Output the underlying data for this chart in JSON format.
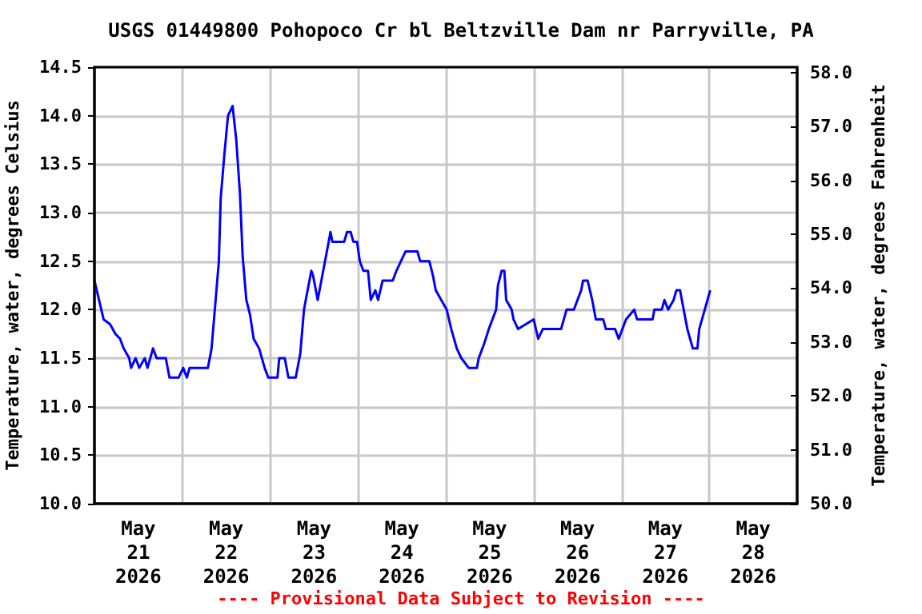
{
  "chart_data": {
    "type": "line",
    "title": "USGS 01449800 Pohopoco Cr bl Beltzville Dam nr Parryville, PA",
    "ylabel": "Temperature, water, degrees Celsius",
    "y2label": "Temperature, water, degrees Fahrenheit",
    "annotations": [
      "---- Provisional Data Subject to Revision ----"
    ],
    "x": [
      "2026-05-21T00:00",
      "2026-05-21T01:15",
      "2026-05-21T02:30",
      "2026-05-21T04:15",
      "2026-05-21T05:45",
      "2026-05-21T07:00",
      "2026-05-21T08:00",
      "2026-05-21T09:30",
      "2026-05-21T10:00",
      "2026-05-21T11:15",
      "2026-05-21T12:15",
      "2026-05-21T13:45",
      "2026-05-21T14:30",
      "2026-05-21T16:00",
      "2026-05-21T17:00",
      "2026-05-21T19:30",
      "2026-05-21T20:30",
      "2026-05-21T23:00",
      "2026-05-22T00:15",
      "2026-05-22T01:15",
      "2026-05-22T02:00",
      "2026-05-22T07:00",
      "2026-05-22T08:00",
      "2026-05-22T09:00",
      "2026-05-22T10:00",
      "2026-05-22T10:30",
      "2026-05-22T11:30",
      "2026-05-22T12:30",
      "2026-05-22T13:45",
      "2026-05-22T14:45",
      "2026-05-22T15:45",
      "2026-05-22T16:30",
      "2026-05-22T17:30",
      "2026-05-22T18:30",
      "2026-05-22T19:30",
      "2026-05-22T21:00",
      "2026-05-22T22:30",
      "2026-05-22T23:30",
      "2026-05-23T02:00",
      "2026-05-23T02:30",
      "2026-05-23T04:00",
      "2026-05-23T05:00",
      "2026-05-23T07:00",
      "2026-05-23T08:15",
      "2026-05-23T09:15",
      "2026-05-23T10:15",
      "2026-05-23T11:15",
      "2026-05-23T11:45",
      "2026-05-23T13:00",
      "2026-05-23T14:00",
      "2026-05-23T15:00",
      "2026-05-23T16:30",
      "2026-05-23T17:00",
      "2026-05-23T20:15",
      "2026-05-23T21:00",
      "2026-05-23T22:00",
      "2026-05-23T22:45",
      "2026-05-23T23:45",
      "2026-05-24T00:30",
      "2026-05-24T01:30",
      "2026-05-24T02:45",
      "2026-05-24T03:30",
      "2026-05-24T04:45",
      "2026-05-24T05:30",
      "2026-05-24T06:45",
      "2026-05-24T09:30",
      "2026-05-24T10:30",
      "2026-05-24T11:45",
      "2026-05-24T13:00",
      "2026-05-24T16:15",
      "2026-05-24T17:00",
      "2026-05-24T19:30",
      "2026-05-24T20:30",
      "2026-05-24T21:15",
      "2026-05-24T22:45",
      "2026-05-25T00:15",
      "2026-05-25T01:30",
      "2026-05-25T03:00",
      "2026-05-25T04:15",
      "2026-05-25T06:15",
      "2026-05-25T08:30",
      "2026-05-25T09:00",
      "2026-05-25T10:30",
      "2026-05-25T11:45",
      "2026-05-25T13:45",
      "2026-05-25T14:15",
      "2026-05-25T15:15",
      "2026-05-25T16:00",
      "2026-05-25T16:30",
      "2026-05-25T18:00",
      "2026-05-25T18:30",
      "2026-05-25T19:45",
      "2026-05-26T00:00",
      "2026-05-26T01:15",
      "2026-05-26T02:30",
      "2026-05-26T07:30",
      "2026-05-26T09:00",
      "2026-05-26T11:00",
      "2026-05-26T13:00",
      "2026-05-26T13:30",
      "2026-05-26T14:45",
      "2026-05-26T16:00",
      "2026-05-26T16:30",
      "2026-05-26T17:00",
      "2026-05-26T19:00",
      "2026-05-26T19:45",
      "2026-05-26T22:15",
      "2026-05-26T23:15",
      "2026-05-27T00:15",
      "2026-05-27T01:15",
      "2026-05-27T03:30",
      "2026-05-27T04:15",
      "2026-05-27T08:30",
      "2026-05-27T09:00",
      "2026-05-27T11:00",
      "2026-05-27T11:45",
      "2026-05-27T12:45",
      "2026-05-27T14:15",
      "2026-05-27T15:00",
      "2026-05-27T16:00",
      "2026-05-27T17:00",
      "2026-05-27T18:00",
      "2026-05-27T18:45",
      "2026-05-27T19:30",
      "2026-05-27T20:45",
      "2026-05-27T21:15",
      "2026-05-27T22:45",
      "2026-05-28T00:15"
    ],
    "series": [
      {
        "color": "#0000ff",
        "values": [
          12.3,
          12.1,
          11.9,
          11.85,
          11.75,
          11.7,
          11.6,
          11.5,
          11.4,
          11.5,
          11.4,
          11.5,
          11.4,
          11.6,
          11.5,
          11.5,
          11.3,
          11.3,
          11.4,
          11.3,
          11.4,
          11.4,
          11.6,
          12.05,
          12.5,
          13.15,
          13.6,
          14.0,
          14.1,
          13.75,
          13.2,
          12.55,
          12.1,
          11.95,
          11.7,
          11.6,
          11.4,
          11.3,
          11.3,
          11.5,
          11.5,
          11.3,
          11.3,
          11.55,
          12.0,
          12.2,
          12.4,
          12.35,
          12.1,
          12.3,
          12.5,
          12.8,
          12.7,
          12.7,
          12.8,
          12.8,
          12.7,
          12.7,
          12.5,
          12.4,
          12.4,
          12.1,
          12.2,
          12.1,
          12.3,
          12.3,
          12.4,
          12.5,
          12.6,
          12.6,
          12.5,
          12.5,
          12.35,
          12.2,
          12.1,
          12.0,
          11.8,
          11.6,
          11.5,
          11.4,
          11.4,
          11.5,
          11.65,
          11.8,
          12.0,
          12.25,
          12.4,
          12.4,
          12.1,
          12.0,
          11.9,
          11.8,
          11.9,
          11.7,
          11.8,
          11.8,
          12.0,
          12.0,
          12.2,
          12.3,
          12.3,
          12.1,
          12.0,
          11.9,
          11.9,
          11.8,
          11.8,
          11.7,
          11.8,
          11.9,
          12.0,
          11.9,
          11.9,
          12.0,
          12.0,
          12.1,
          12.0,
          12.1,
          12.2,
          12.2,
          12.0,
          11.8,
          11.7,
          11.6,
          11.6,
          11.8,
          12.0,
          12.2
        ]
      }
    ],
    "xlim": [
      "2026-05-21",
      "2026-05-29"
    ],
    "xticks": [
      {
        "value": "2026-05-21T00:00",
        "label": null
      },
      {
        "value": "2026-05-21T12:00",
        "label": "May\n21\n2026"
      },
      {
        "value": "2026-05-22T00:00",
        "label": null
      },
      {
        "value": "2026-05-22T12:00",
        "label": "May\n22\n2026"
      },
      {
        "value": "2026-05-23T00:00",
        "label": null
      },
      {
        "value": "2026-05-23T12:00",
        "label": "May\n23\n2026"
      },
      {
        "value": "2026-05-24T00:00",
        "label": null
      },
      {
        "value": "2026-05-24T12:00",
        "label": "May\n24\n2026"
      },
      {
        "value": "2026-05-25T00:00",
        "label": null
      },
      {
        "value": "2026-05-25T12:00",
        "label": "May\n25\n2026"
      },
      {
        "value": "2026-05-26T00:00",
        "label": null
      },
      {
        "value": "2026-05-26T12:00",
        "label": "May\n26\n2026"
      },
      {
        "value": "2026-05-27T00:00",
        "label": null
      },
      {
        "value": "2026-05-27T12:00",
        "label": "May\n27\n2026"
      },
      {
        "value": "2026-05-28T00:00",
        "label": null
      },
      {
        "value": "2026-05-28T12:00",
        "label": "May\n28\n2026"
      },
      {
        "value": "2026-05-29T00:00",
        "label": null
      }
    ],
    "ylim": [
      10,
      14.5
    ],
    "yticks": [
      {
        "value": 10,
        "label": "10.0"
      },
      {
        "value": 10.5,
        "label": "10.5"
      },
      {
        "value": 11,
        "label": "11.0"
      },
      {
        "value": 11.5,
        "label": "11.5"
      },
      {
        "value": 12,
        "label": "12.0"
      },
      {
        "value": 12.5,
        "label": "12.5"
      },
      {
        "value": 13,
        "label": "13.0"
      },
      {
        "value": 13.5,
        "label": "13.5"
      },
      {
        "value": 14,
        "label": "14.0"
      },
      {
        "value": 14.5,
        "label": "14.5"
      }
    ],
    "y2lim": [
      50,
      58.1
    ],
    "y2ticks": [
      {
        "value": 50,
        "label": "50.0"
      },
      {
        "value": 51,
        "label": "51.0"
      },
      {
        "value": 52,
        "label": "52.0"
      },
      {
        "value": 53,
        "label": "53.0"
      },
      {
        "value": 54,
        "label": "54.0"
      },
      {
        "value": 55,
        "label": "55.0"
      },
      {
        "value": 56,
        "label": "56.0"
      },
      {
        "value": 57,
        "label": "57.0"
      },
      {
        "value": 58,
        "label": "58.0"
      }
    ],
    "grid": true
  }
}
